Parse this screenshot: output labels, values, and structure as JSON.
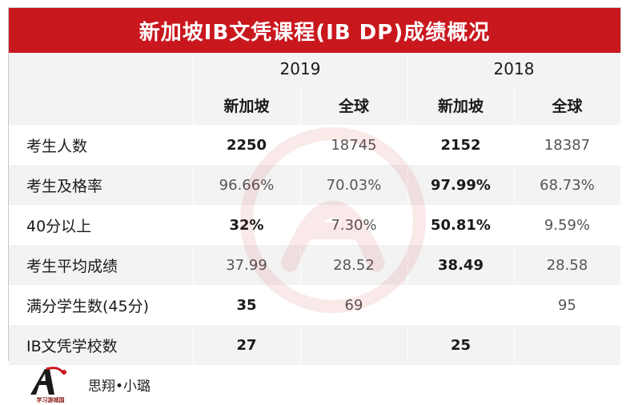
{
  "title": "新加坡IB文凭课程(IB DP)成绩概况",
  "years": [
    "2019",
    "2018"
  ],
  "regions": [
    "新加坡",
    "全球",
    "新加坡",
    "全球"
  ],
  "rows": [
    {
      "label": "考生人数",
      "values": [
        "2250",
        "18745",
        "2152",
        "18387"
      ]
    },
    {
      "label": "考生及格率",
      "values": [
        "96.66%",
        "70.03%",
        "97.99%",
        "68.73%"
      ]
    },
    {
      "label": "40分以上",
      "values": [
        "32%",
        "7.30%",
        "50.81%",
        "9.59%"
      ]
    },
    {
      "label": "考生平均成绩",
      "values": [
        "37.99",
        "28.52",
        "38.49",
        "28.58"
      ]
    },
    {
      "label": "满分学生数(45分)",
      "values": [
        "35",
        "69",
        "",
        "95"
      ]
    },
    {
      "label": "IB文凭学校数",
      "values": [
        "27",
        "",
        "25",
        ""
      ]
    }
  ],
  "footer": {
    "brand": "思翔•小璐",
    "logo_caption": "学习游城国",
    "logo_icon": "A-letter-logo-icon"
  },
  "colors": {
    "title_bg": "#c9171e",
    "band": "#f3f3f3",
    "white": "#ffffff"
  }
}
